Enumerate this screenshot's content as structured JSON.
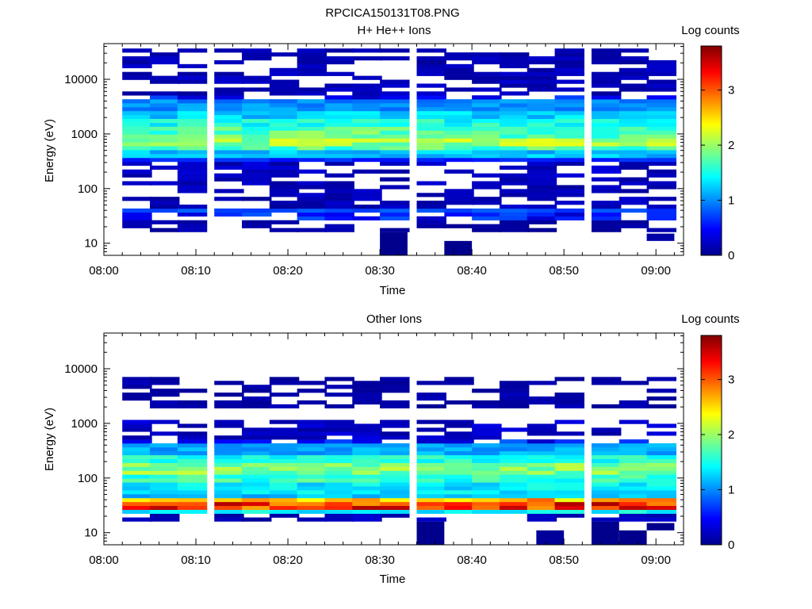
{
  "figure_title": "RPCICA150131T08.PNG",
  "panels": [
    {
      "title": "H+ He++ Ions",
      "ylabel": "Energy (eV)",
      "xlabel": "Time",
      "colorbar_label": "Log counts"
    },
    {
      "title": "Other Ions",
      "ylabel": "Energy (eV)",
      "xlabel": "Time",
      "colorbar_label": "Log counts"
    }
  ],
  "chart_data": [
    {
      "type": "heatmap",
      "title": "H+ He++ Ions",
      "xlabel": "Time",
      "ylabel": "Energy (eV)",
      "xlim": [
        "08:00",
        "09:03"
      ],
      "ylim": [
        6,
        45000
      ],
      "yscale": "log",
      "xticks": [
        "08:00",
        "08:10",
        "08:20",
        "08:30",
        "08:40",
        "08:50",
        "09:00"
      ],
      "yticks": [
        10,
        100,
        1000,
        10000
      ],
      "ytick_labels": [
        "10",
        "100",
        "1000",
        "10000"
      ],
      "colorbar": {
        "label": "Log counts",
        "range": [
          0,
          3.8
        ],
        "ticks": [
          0,
          1,
          2,
          3
        ],
        "colormap": "jet"
      },
      "time_bins_start": [
        "08:02",
        "08:05",
        "08:08",
        "08:12",
        "08:15",
        "08:18",
        "08:21",
        "08:24",
        "08:27",
        "08:30",
        "08:34",
        "08:37",
        "08:40",
        "08:43",
        "08:46",
        "08:49",
        "08:53",
        "08:56",
        "08:59"
      ],
      "time_bin_minutes": 3.2,
      "bands": [
        {
          "e_low": 5500,
          "e_high": 38000,
          "intensity": 0.2
        },
        {
          "e_low": 4000,
          "e_high": 5500,
          "intensity": 0.5
        },
        {
          "e_low": 2500,
          "e_high": 4000,
          "intensity": 1.0
        },
        {
          "e_low": 1800,
          "e_high": 2500,
          "intensity": 1.25
        },
        {
          "e_low": 1300,
          "e_high": 1800,
          "intensity": 1.5
        },
        {
          "e_low": 900,
          "e_high": 1300,
          "intensity": 1.75
        },
        {
          "e_low": 650,
          "e_high": 900,
          "intensity": 2.0
        },
        {
          "e_low": 480,
          "e_high": 650,
          "intensity": 1.7
        },
        {
          "e_low": 380,
          "e_high": 480,
          "intensity": 1.2
        },
        {
          "e_low": 300,
          "e_high": 380,
          "intensity": 0.6
        },
        {
          "e_low": 160,
          "e_high": 300,
          "intensity": 0.25
        },
        {
          "e_low": 45,
          "e_high": 160,
          "intensity": 0.2
        },
        {
          "e_low": 34,
          "e_high": 45,
          "intensity": 0.75
        },
        {
          "e_low": 27,
          "e_high": 34,
          "intensity": 0.55
        },
        {
          "e_low": 16,
          "e_high": 27,
          "intensity": 0.15
        }
      ],
      "low_energy_blocks": [
        {
          "time_start": "08:30",
          "time_end": "08:33",
          "e_low": 6,
          "e_high": 16,
          "intensity": 0.05
        },
        {
          "time_start": "08:37",
          "time_end": "08:40",
          "e_low": 6,
          "e_high": 11,
          "intensity": 0.05
        },
        {
          "time_start": "08:59",
          "time_end": "09:02",
          "e_low": 11,
          "e_high": 15,
          "intensity": 0.15
        }
      ]
    },
    {
      "type": "heatmap",
      "title": "Other Ions",
      "xlabel": "Time",
      "ylabel": "Energy (eV)",
      "xlim": [
        "08:00",
        "09:03"
      ],
      "ylim": [
        6,
        45000
      ],
      "yscale": "log",
      "xticks": [
        "08:00",
        "08:10",
        "08:20",
        "08:30",
        "08:40",
        "08:50",
        "09:00"
      ],
      "yticks": [
        10,
        100,
        1000,
        10000
      ],
      "ytick_labels": [
        "10",
        "100",
        "1000",
        "10000"
      ],
      "colorbar": {
        "label": "Log counts",
        "range": [
          0,
          3.8
        ],
        "ticks": [
          0,
          1,
          2,
          3
        ],
        "colormap": "jet"
      },
      "time_bins_start": [
        "08:02",
        "08:05",
        "08:08",
        "08:12",
        "08:15",
        "08:18",
        "08:21",
        "08:24",
        "08:27",
        "08:30",
        "08:34",
        "08:37",
        "08:40",
        "08:43",
        "08:46",
        "08:49",
        "08:53",
        "08:56",
        "08:59"
      ],
      "time_bin_minutes": 3.2,
      "bands": [
        {
          "e_low": 2000,
          "e_high": 7000,
          "intensity": 0.15
        },
        {
          "e_low": 550,
          "e_high": 1200,
          "intensity": 0.25
        },
        {
          "e_low": 400,
          "e_high": 550,
          "intensity": 0.55
        },
        {
          "e_low": 280,
          "e_high": 400,
          "intensity": 1.1
        },
        {
          "e_low": 180,
          "e_high": 280,
          "intensity": 1.5
        },
        {
          "e_low": 120,
          "e_high": 180,
          "intensity": 1.9
        },
        {
          "e_low": 80,
          "e_high": 120,
          "intensity": 1.6
        },
        {
          "e_low": 55,
          "e_high": 80,
          "intensity": 1.35
        },
        {
          "e_low": 42,
          "e_high": 55,
          "intensity": 1.2
        },
        {
          "e_low": 34,
          "e_high": 42,
          "intensity": 2.7
        },
        {
          "e_low": 28,
          "e_high": 34,
          "intensity": 3.2
        },
        {
          "e_low": 23,
          "e_high": 28,
          "intensity": 1.4
        },
        {
          "e_low": 17,
          "e_high": 23,
          "intensity": 0.2
        }
      ],
      "low_energy_blocks": [
        {
          "time_start": "08:34",
          "time_end": "08:37",
          "e_low": 6,
          "e_high": 16,
          "intensity": 0.05
        },
        {
          "time_start": "08:47",
          "time_end": "08:50",
          "e_low": 6,
          "e_high": 11,
          "intensity": 0.1
        },
        {
          "time_start": "08:53",
          "time_end": "08:56",
          "e_low": 6,
          "e_high": 16,
          "intensity": 0.05
        },
        {
          "time_start": "08:56",
          "time_end": "08:59",
          "e_low": 6,
          "e_high": 11,
          "intensity": 0.05
        },
        {
          "time_start": "08:59",
          "time_end": "09:02",
          "e_low": 11,
          "e_high": 15,
          "intensity": 0.05
        }
      ]
    }
  ]
}
